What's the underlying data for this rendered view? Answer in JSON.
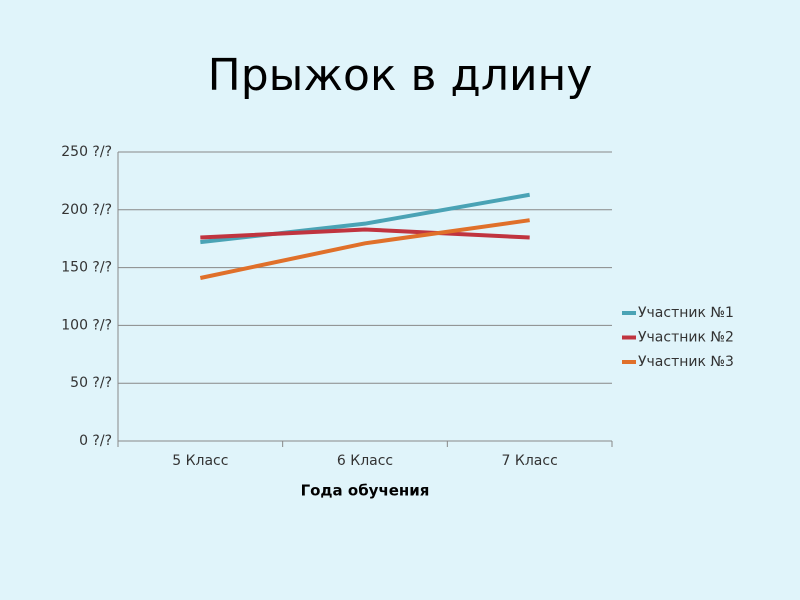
{
  "chart_data": {
    "type": "line",
    "title": "Прыжок в длину",
    "x_label": "Года обучения",
    "categories": [
      "5 Класс",
      "6 Класс",
      "7 Класс"
    ],
    "series": [
      {
        "name": "Участник №1",
        "color": "#4aa3b5",
        "values": [
          172,
          188,
          213
        ]
      },
      {
        "name": "Участник №2",
        "color": "#c0343f",
        "values": [
          176,
          183,
          176
        ]
      },
      {
        "name": "Участник №3",
        "color": "#e0702a",
        "values": [
          141,
          171,
          191
        ]
      }
    ],
    "ylim": [
      0,
      250
    ],
    "yticks": [
      {
        "value": 0,
        "label": "0 ?/?"
      },
      {
        "value": 50,
        "label": "50 ?/?"
      },
      {
        "value": 100,
        "label": "100 ?/?"
      },
      {
        "value": 150,
        "label": "150 ?/?"
      },
      {
        "value": 200,
        "label": "200 ?/?"
      },
      {
        "value": 250,
        "label": "250 ?/?"
      }
    ],
    "grid": true,
    "legend": "right"
  }
}
